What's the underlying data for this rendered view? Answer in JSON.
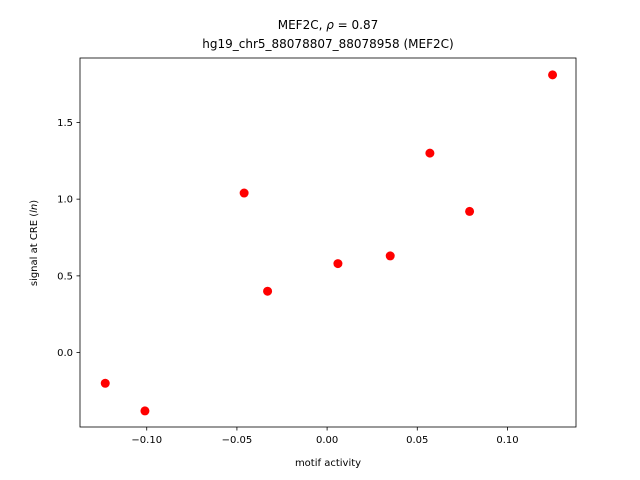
{
  "chart_data": {
    "type": "scatter",
    "title_line1": "MEF2C, ",
    "title_rho": "ρ",
    "title_rho_value": " = 0.87",
    "title_line2": "hg19_chr5_88078807_88078958 (MEF2C)",
    "xlabel": "motif activity",
    "ylabel_prefix": "signal at CRE (",
    "ylabel_italic": "ln",
    "ylabel_suffix": ")",
    "xlim": [
      -0.137,
      0.138
    ],
    "ylim": [
      -0.485,
      1.92
    ],
    "xticks": [
      -0.1,
      -0.05,
      0.0,
      0.05,
      0.1
    ],
    "xtick_labels": [
      "−0.10",
      "−0.05",
      "0.00",
      "0.05",
      "0.10"
    ],
    "yticks": [
      0.0,
      0.5,
      1.0,
      1.5
    ],
    "ytick_labels": [
      "0.0",
      "0.5",
      "1.0",
      "1.5"
    ],
    "grid": false,
    "marker_color": "#ff0000",
    "points": [
      {
        "x": -0.123,
        "y": -0.2
      },
      {
        "x": -0.101,
        "y": -0.38
      },
      {
        "x": -0.046,
        "y": 1.04
      },
      {
        "x": -0.033,
        "y": 0.4
      },
      {
        "x": 0.006,
        "y": 0.58
      },
      {
        "x": 0.035,
        "y": 0.63
      },
      {
        "x": 0.057,
        "y": 1.3
      },
      {
        "x": 0.079,
        "y": 0.92
      },
      {
        "x": 0.125,
        "y": 1.81
      }
    ]
  }
}
